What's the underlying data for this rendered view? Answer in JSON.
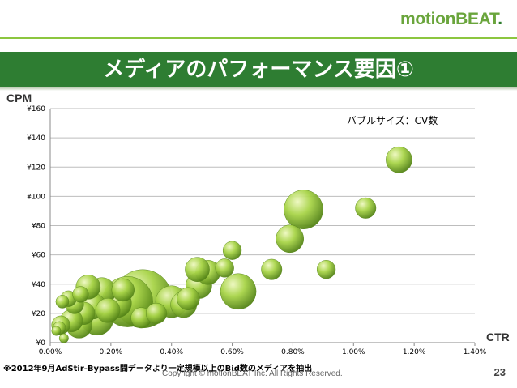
{
  "brand": {
    "logo_text": "motionBEAT",
    "logo_dot": "."
  },
  "slide": {
    "title": "メディアのパフォーマンス要因①",
    "footnote": "※2012年9月AdStir-Bypass間データより一定規模以上のBid数のメディアを抽出",
    "copyright": "Copyright © motionBEAT   Inc. All Rights Reserved.",
    "page_number": "23"
  },
  "colors": {
    "banner": "#2e7d32",
    "accent": "#8cc63f",
    "bubble_light": "#e8f5b0",
    "bubble_mid": "#9ccc3c",
    "bubble_dark": "#4a7a12"
  },
  "chart_data": {
    "type": "scatter",
    "bubble": true,
    "ylabel": "CPM",
    "xlabel": "CTR",
    "size_note": "バブルサイズ：CV数",
    "xlim": [
      0,
      0.014
    ],
    "ylim": [
      0,
      160
    ],
    "x_ticks": [
      "0.00%",
      "0.20%",
      "0.40%",
      "0.60%",
      "0.80%",
      "1.00%",
      "1.20%",
      "1.40%"
    ],
    "y_ticks": [
      "¥0",
      "¥20",
      "¥40",
      "¥60",
      "¥80",
      "¥100",
      "¥120",
      "¥140",
      "¥160"
    ],
    "grid": true,
    "points": [
      {
        "x": 0.0115,
        "y": 125,
        "size": 8
      },
      {
        "x": 0.0104,
        "y": 92,
        "size": 5
      },
      {
        "x": 0.00835,
        "y": 91,
        "size": 18
      },
      {
        "x": 0.0079,
        "y": 71,
        "size": 9
      },
      {
        "x": 0.0091,
        "y": 50,
        "size": 4
      },
      {
        "x": 0.0073,
        "y": 50,
        "size": 5
      },
      {
        "x": 0.006,
        "y": 63,
        "size": 4
      },
      {
        "x": 0.00575,
        "y": 51,
        "size": 4
      },
      {
        "x": 0.0062,
        "y": 35,
        "size": 15
      },
      {
        "x": 0.0052,
        "y": 48,
        "size": 7
      },
      {
        "x": 0.00485,
        "y": 50,
        "size": 7
      },
      {
        "x": 0.0049,
        "y": 39,
        "size": 8
      },
      {
        "x": 0.00455,
        "y": 30,
        "size": 6
      },
      {
        "x": 0.0044,
        "y": 26,
        "size": 8
      },
      {
        "x": 0.004,
        "y": 28,
        "size": 12
      },
      {
        "x": 0.00305,
        "y": 30,
        "size": 40
      },
      {
        "x": 0.00255,
        "y": 28,
        "size": 30
      },
      {
        "x": 0.0022,
        "y": 27,
        "size": 10
      },
      {
        "x": 0.0024,
        "y": 36,
        "size": 6
      },
      {
        "x": 0.0019,
        "y": 22,
        "size": 7
      },
      {
        "x": 0.0017,
        "y": 35,
        "size": 9
      },
      {
        "x": 0.00125,
        "y": 38,
        "size": 7
      },
      {
        "x": 0.0014,
        "y": 25,
        "size": 8
      },
      {
        "x": 0.00155,
        "y": 16,
        "size": 12
      },
      {
        "x": 0.0011,
        "y": 20,
        "size": 6
      },
      {
        "x": 0.00095,
        "y": 12,
        "size": 8
      },
      {
        "x": 0.0007,
        "y": 15,
        "size": 6
      },
      {
        "x": 0.0008,
        "y": 26,
        "size": 4
      },
      {
        "x": 0.0006,
        "y": 30,
        "size": 3
      },
      {
        "x": 0.0004,
        "y": 28,
        "size": 2
      },
      {
        "x": 0.00035,
        "y": 12,
        "size": 4
      },
      {
        "x": 0.0003,
        "y": 10,
        "size": 2
      },
      {
        "x": 0.0002,
        "y": 8,
        "size": 1
      },
      {
        "x": 0.00045,
        "y": 3,
        "size": 1
      },
      {
        "x": 0.003,
        "y": 17,
        "size": 5
      },
      {
        "x": 0.0035,
        "y": 20,
        "size": 5
      },
      {
        "x": 0.001,
        "y": 33,
        "size": 3
      }
    ]
  }
}
